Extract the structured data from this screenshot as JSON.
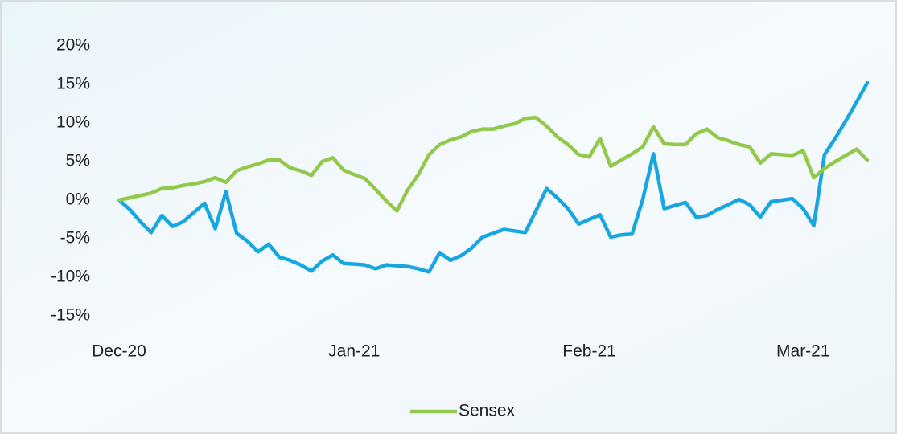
{
  "chart_data": {
    "type": "line",
    "categories": [
      "Dec-20",
      null,
      null,
      null,
      null,
      null,
      null,
      null,
      null,
      null,
      null,
      null,
      null,
      null,
      null,
      null,
      null,
      null,
      null,
      null,
      null,
      null,
      "Jan-21",
      null,
      null,
      null,
      null,
      null,
      null,
      null,
      null,
      null,
      null,
      null,
      null,
      null,
      null,
      null,
      null,
      null,
      null,
      null,
      null,
      null,
      "Feb-21",
      null,
      null,
      null,
      null,
      null,
      null,
      null,
      null,
      null,
      null,
      null,
      null,
      null,
      null,
      null,
      null,
      null,
      null,
      null,
      "Mar-21",
      null,
      null,
      null,
      null,
      null,
      null
    ],
    "series": [
      {
        "name": "Sensex",
        "color": "#92c94b",
        "values": [
          0,
          0.3,
          0.6,
          0.9,
          1.5,
          1.6,
          1.9,
          2.1,
          2.4,
          2.9,
          2.3,
          3.8,
          4.3,
          4.7,
          5.2,
          5.2,
          4.2,
          3.8,
          3.2,
          5.0,
          5.5,
          3.9,
          3.3,
          2.8,
          1.4,
          -0.1,
          -1.4,
          1.3,
          3.3,
          5.9,
          7.2,
          7.8,
          8.2,
          8.9,
          9.2,
          9.2,
          9.6,
          9.9,
          10.6,
          10.7,
          9.6,
          8.2,
          7.2,
          5.9,
          5.6,
          8.0,
          4.4,
          5.2,
          6.0,
          6.9,
          9.5,
          7.3,
          7.2,
          7.2,
          8.6,
          9.2,
          8.1,
          7.7,
          7.2,
          6.9,
          4.8,
          6.0,
          5.9,
          5.8,
          6.4,
          2.9,
          4.1,
          5.0,
          5.8,
          6.6,
          5.2
        ]
      },
      {
        "color": "#17a6e0",
        "values": [
          0,
          -1.2,
          -2.8,
          -4.2,
          -2.0,
          -3.4,
          -2.8,
          -1.6,
          -0.4,
          -3.7,
          1.1,
          -4.3,
          -5.3,
          -6.7,
          -5.7,
          -7.4,
          -7.8,
          -8.4,
          -9.2,
          -7.9,
          -7.1,
          -8.2,
          -8.3,
          -8.4,
          -8.9,
          -8.4,
          -8.5,
          -8.6,
          -8.9,
          -9.3,
          -6.8,
          -7.8,
          -7.2,
          -6.2,
          -4.8,
          -4.3,
          -3.8,
          -4.0,
          -4.2,
          -1.4,
          1.5,
          0.3,
          -1.1,
          -3.1,
          -2.5,
          -1.9,
          -4.8,
          -4.5,
          -4.4,
          0.1,
          6.0,
          -1.1,
          -0.7,
          -0.3,
          -2.2,
          -2.0,
          -1.2,
          -0.6,
          0.1,
          -0.6,
          -2.2,
          -0.2,
          0,
          0.2,
          -1.1,
          -3.3,
          5.9,
          8.0,
          10.3,
          12.7,
          15.2
        ]
      }
    ],
    "ylim": [
      -15,
      20
    ],
    "yticks": [
      {
        "value": -15,
        "label": "-15%"
      },
      {
        "value": -10,
        "label": "-10%"
      },
      {
        "value": -5,
        "label": "-5%"
      },
      {
        "value": 0,
        "label": "0%"
      },
      {
        "value": 5,
        "label": "5%"
      },
      {
        "value": 10,
        "label": "10%"
      },
      {
        "value": 15,
        "label": "15%"
      },
      {
        "value": 20,
        "label": "20%"
      }
    ],
    "legend": "bottom"
  }
}
